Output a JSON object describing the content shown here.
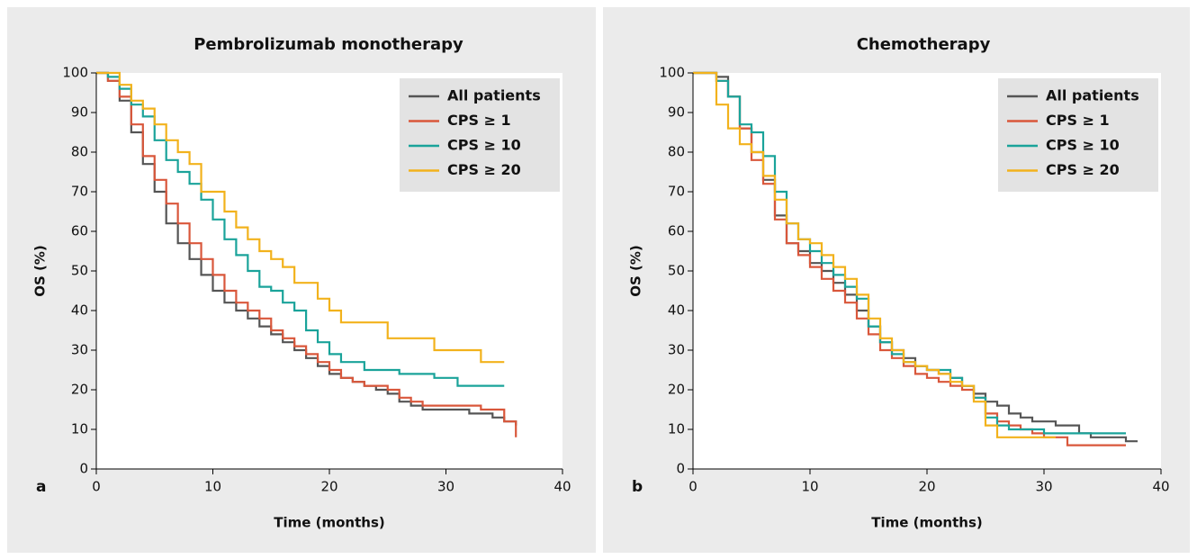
{
  "chart_data": [
    {
      "type": "line",
      "step": true,
      "panel_label": "a",
      "title": "Pembrolizumab monotherapy",
      "x_label": "Time (months)",
      "y_label": "OS (%)",
      "x": [
        0,
        1,
        2,
        3,
        4,
        5,
        6,
        7,
        8,
        9,
        10,
        11,
        12,
        13,
        14,
        15,
        16,
        17,
        18,
        19,
        20,
        21,
        22,
        23,
        24,
        25,
        26,
        27,
        28,
        29,
        30,
        31,
        32,
        33,
        34,
        35,
        36
      ],
      "xlim": [
        0,
        40
      ],
      "xticks": [
        0,
        10,
        20,
        30,
        40
      ],
      "ylim": [
        0,
        100
      ],
      "yticks": [
        0,
        10,
        20,
        30,
        40,
        50,
        60,
        70,
        80,
        90,
        100
      ],
      "legend": "upper right",
      "series": [
        {
          "name": "All patients",
          "color": "#555555",
          "values": [
            100,
            98,
            93,
            85,
            77,
            70,
            62,
            57,
            53,
            49,
            45,
            42,
            40,
            38,
            36,
            34,
            32,
            30,
            28,
            26,
            24,
            23,
            22,
            21,
            20,
            19,
            17,
            16,
            15,
            15,
            15,
            15,
            14,
            14,
            13,
            12,
            11
          ]
        },
        {
          "name": "CPS ≥ 1",
          "color": "#d9573b",
          "values": [
            100,
            98,
            94,
            87,
            79,
            73,
            67,
            62,
            57,
            53,
            49,
            45,
            42,
            40,
            38,
            35,
            33,
            31,
            29,
            27,
            25,
            23,
            22,
            21,
            21,
            20,
            18,
            17,
            16,
            16,
            16,
            16,
            16,
            15,
            15,
            12,
            8
          ]
        },
        {
          "name": "CPS ≥ 10",
          "color": "#1aa39a",
          "values": [
            100,
            99,
            96,
            92,
            89,
            83,
            78,
            75,
            72,
            68,
            63,
            58,
            54,
            50,
            46,
            45,
            42,
            40,
            35,
            32,
            29,
            27,
            27,
            25,
            25,
            25,
            24,
            24,
            24,
            23,
            23,
            21,
            21,
            21,
            21,
            21,
            null
          ]
        },
        {
          "name": "CPS ≥ 20",
          "color": "#f2b21c",
          "values": [
            100,
            100,
            97,
            93,
            91,
            87,
            83,
            80,
            77,
            70,
            70,
            65,
            61,
            58,
            55,
            53,
            51,
            47,
            47,
            43,
            40,
            37,
            37,
            37,
            37,
            33,
            33,
            33,
            33,
            30,
            30,
            30,
            30,
            27,
            27,
            27,
            null
          ]
        }
      ]
    },
    {
      "type": "line",
      "step": true,
      "panel_label": "b",
      "title": "Chemotherapy",
      "x_label": "Time (months)",
      "y_label": "OS (%)",
      "x": [
        0,
        1,
        2,
        3,
        4,
        5,
        6,
        7,
        8,
        9,
        10,
        11,
        12,
        13,
        14,
        15,
        16,
        17,
        18,
        19,
        20,
        21,
        22,
        23,
        24,
        25,
        26,
        27,
        28,
        29,
        30,
        31,
        32,
        33,
        34,
        35,
        36,
        37,
        38
      ],
      "xlim": [
        0,
        40
      ],
      "xticks": [
        0,
        10,
        20,
        30,
        40
      ],
      "ylim": [
        0,
        100
      ],
      "yticks": [
        0,
        10,
        20,
        30,
        40,
        50,
        60,
        70,
        80,
        90,
        100
      ],
      "legend": "upper right",
      "series": [
        {
          "name": "All patients",
          "color": "#555555",
          "values": [
            100,
            100,
            99,
            94,
            86,
            80,
            73,
            64,
            57,
            55,
            52,
            50,
            47,
            44,
            40,
            36,
            32,
            30,
            28,
            26,
            25,
            24,
            23,
            21,
            19,
            17,
            16,
            14,
            13,
            12,
            12,
            11,
            11,
            9,
            8,
            8,
            8,
            7,
            7
          ]
        },
        {
          "name": "CPS ≥ 1",
          "color": "#d9573b",
          "values": [
            100,
            100,
            98,
            94,
            86,
            78,
            72,
            63,
            57,
            54,
            51,
            48,
            45,
            42,
            38,
            34,
            30,
            28,
            26,
            24,
            23,
            22,
            21,
            20,
            18,
            14,
            12,
            11,
            10,
            9,
            8,
            8,
            6,
            6,
            6,
            6,
            6,
            6,
            null
          ]
        },
        {
          "name": "CPS ≥ 10",
          "color": "#1aa39a",
          "values": [
            100,
            100,
            98,
            94,
            87,
            85,
            79,
            70,
            62,
            58,
            55,
            52,
            49,
            46,
            43,
            36,
            32,
            29,
            27,
            26,
            25,
            25,
            23,
            21,
            18,
            13,
            11,
            10,
            10,
            10,
            9,
            9,
            9,
            9,
            9,
            9,
            9,
            9,
            null
          ]
        },
        {
          "name": "CPS ≥ 20",
          "color": "#f2b21c",
          "values": [
            100,
            100,
            92,
            86,
            82,
            80,
            74,
            68,
            62,
            58,
            57,
            54,
            51,
            48,
            44,
            38,
            33,
            30,
            27,
            26,
            25,
            24,
            22,
            21,
            17,
            11,
            8,
            8,
            8,
            8,
            8,
            8,
            null,
            null,
            null,
            null,
            null,
            null,
            null
          ]
        }
      ]
    }
  ]
}
